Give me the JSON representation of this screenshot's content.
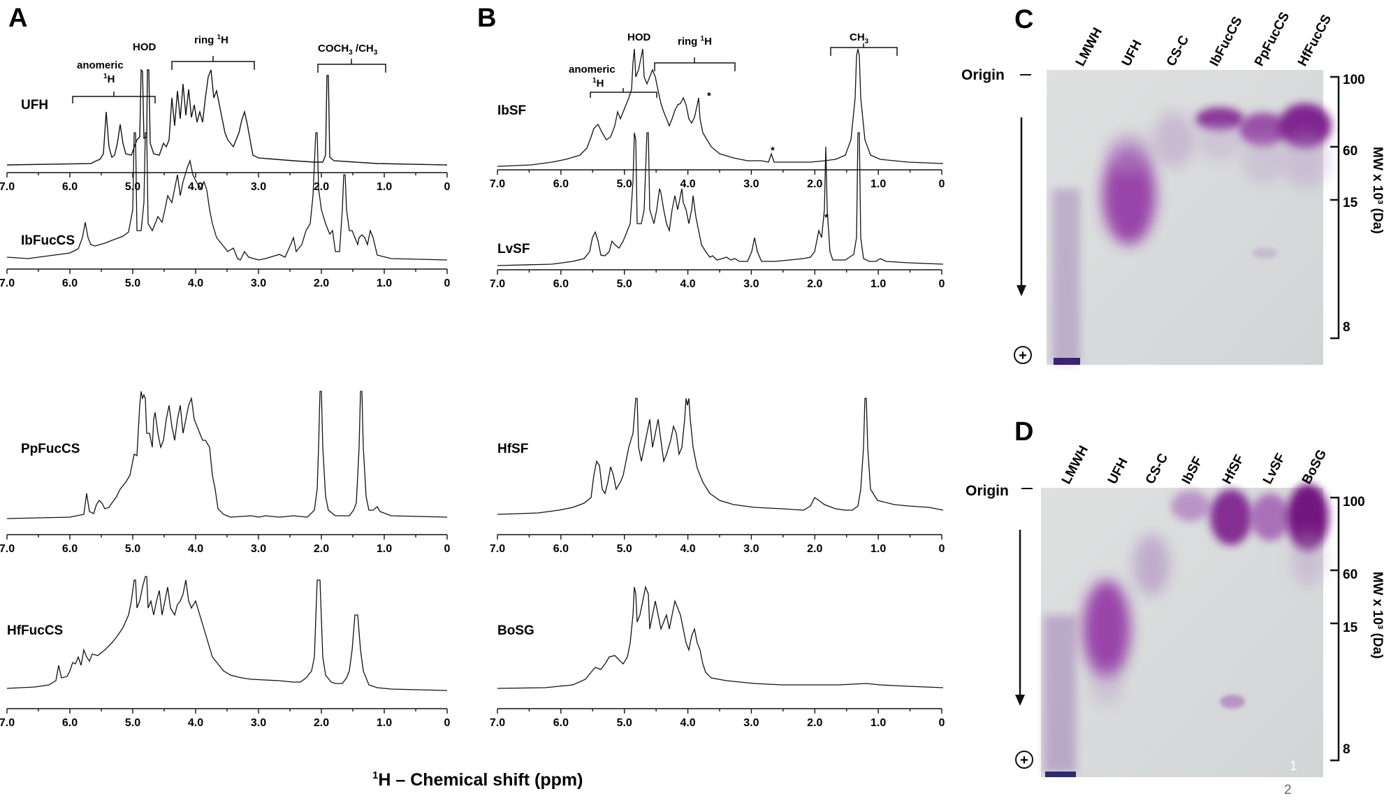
{
  "figure": {
    "x_axis_label_main": "H – Chemical shift (ppm)",
    "x_axis_label_sup": "1",
    "tick_labels": [
      "7.0",
      "6.0",
      "5.0",
      "4.0",
      "3.0",
      "2.0",
      "1.0",
      "0"
    ]
  },
  "panel_a": {
    "letter": "A",
    "annotations": {
      "anomeric_line1": "anomeric",
      "anomeric_line2_sup": "1",
      "anomeric_line2": "H",
      "hod": "HOD",
      "ring_prefix": "ring ",
      "ring_sup": "1",
      "ring_suffix": "H",
      "coch3_prefix": "COCH",
      "coch3_sub": "3",
      "coch3_mid": " /CH",
      "coch3_sub2": "3"
    },
    "spectra": [
      "UFH",
      "IbFucCS",
      "PpFucCS",
      "HfFucCS"
    ]
  },
  "panel_b": {
    "letter": "B",
    "annotations": {
      "anomeric_line1": "anomeric",
      "anomeric_line2_sup": "1",
      "anomeric_line2": "H",
      "hod": "HOD",
      "ring_prefix": "ring ",
      "ring_sup": "1",
      "ring_suffix": "H",
      "ch3_prefix": "CH",
      "ch3_sub": "3",
      "star": "*"
    },
    "spectra": [
      "IbSF",
      "LvSF",
      "HfSF",
      "BoSG"
    ]
  },
  "panel_c": {
    "letter": "C",
    "lanes": [
      "LMWH",
      "UFH",
      "CS-C",
      "IbFucCS",
      "PpFucCS",
      "HfFucCS"
    ],
    "origin": "Origin",
    "plus": "+",
    "mw_ticks": [
      "100",
      "60",
      "15",
      "8"
    ],
    "mw_label": "MW x 10³ (Da)"
  },
  "panel_d": {
    "letter": "D",
    "lanes": [
      "LMWH",
      "UFH",
      "CS-C",
      "IbSF",
      "HfSF",
      "LvSF",
      "BoSG"
    ],
    "origin": "Origin",
    "plus": "+",
    "mw_ticks": [
      "100",
      "60",
      "15",
      "8"
    ],
    "mw_label": "MW x 10³ (Da)",
    "corner_numbers": [
      "1",
      "2"
    ]
  },
  "colors": {
    "stain": "#7b1c8c",
    "gel_bg": "#d9dcdc",
    "ink": "#111111"
  }
}
